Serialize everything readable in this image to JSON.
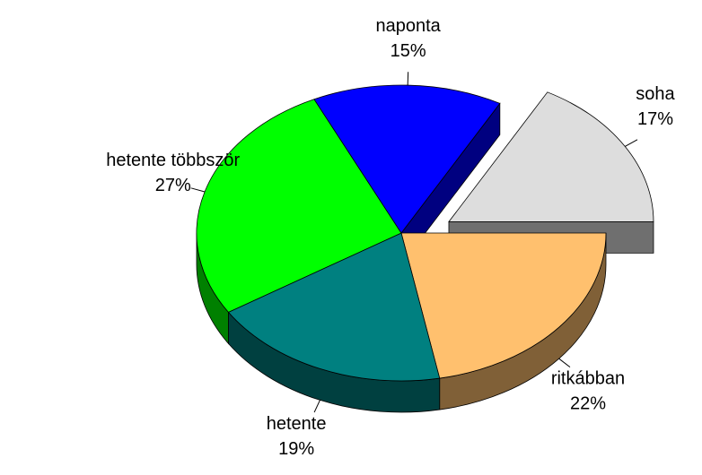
{
  "chart_data": {
    "type": "pie",
    "categories": [
      "ritkábban",
      "hetente",
      "hetente többször",
      "naponta",
      "soha"
    ],
    "values": [
      22,
      19,
      27,
      15,
      17
    ],
    "value_labels": [
      "22%",
      "19%",
      "27%",
      "15%",
      "17%"
    ],
    "colors": [
      "#ffc06e",
      "#008080",
      "#00ff00",
      "#0000ff",
      "#dddddd"
    ],
    "explode": [
      false,
      false,
      false,
      false,
      true
    ],
    "three_d": true
  }
}
